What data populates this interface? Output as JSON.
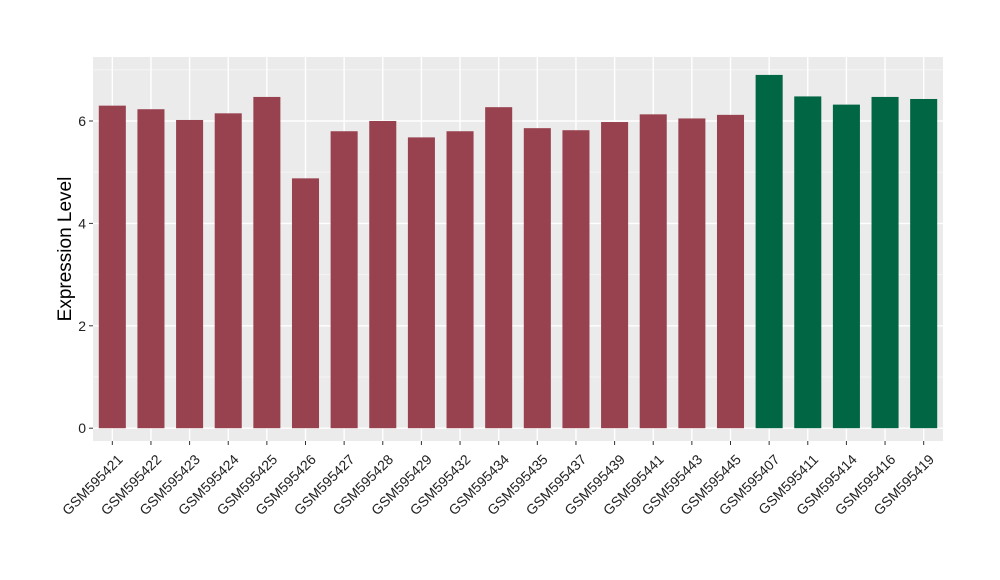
{
  "chart_data": {
    "type": "bar",
    "ylabel": "Expression Level",
    "xlabel": "",
    "title": "",
    "ylim": [
      -0.25,
      7.25
    ],
    "yticks": [
      0,
      2,
      4,
      6
    ],
    "grid": true,
    "categories": [
      "GSM595421",
      "GSM595422",
      "GSM595423",
      "GSM595424",
      "GSM595425",
      "GSM595426",
      "GSM595427",
      "GSM595428",
      "GSM595429",
      "GSM595432",
      "GSM595434",
      "GSM595435",
      "GSM595437",
      "GSM595439",
      "GSM595441",
      "GSM595443",
      "GSM595445",
      "GSM595407",
      "GSM595411",
      "GSM595414",
      "GSM595416",
      "GSM595419"
    ],
    "values": [
      6.3,
      6.23,
      6.02,
      6.15,
      6.47,
      4.88,
      5.8,
      6.0,
      5.68,
      5.8,
      6.27,
      5.86,
      5.82,
      5.98,
      6.13,
      6.05,
      6.12,
      6.9,
      6.48,
      6.32,
      6.47,
      6.43
    ],
    "groups": [
      "g1",
      "g1",
      "g1",
      "g1",
      "g1",
      "g1",
      "g1",
      "g1",
      "g1",
      "g1",
      "g1",
      "g1",
      "g1",
      "g1",
      "g1",
      "g1",
      "g1",
      "g2",
      "g2",
      "g2",
      "g2",
      "g2"
    ],
    "colors": {
      "g1": "#99424f",
      "g2": "#006644",
      "panel": "#ebebeb",
      "grid_major": "#ffffff",
      "grid_minor": "#f5f5f5"
    }
  }
}
